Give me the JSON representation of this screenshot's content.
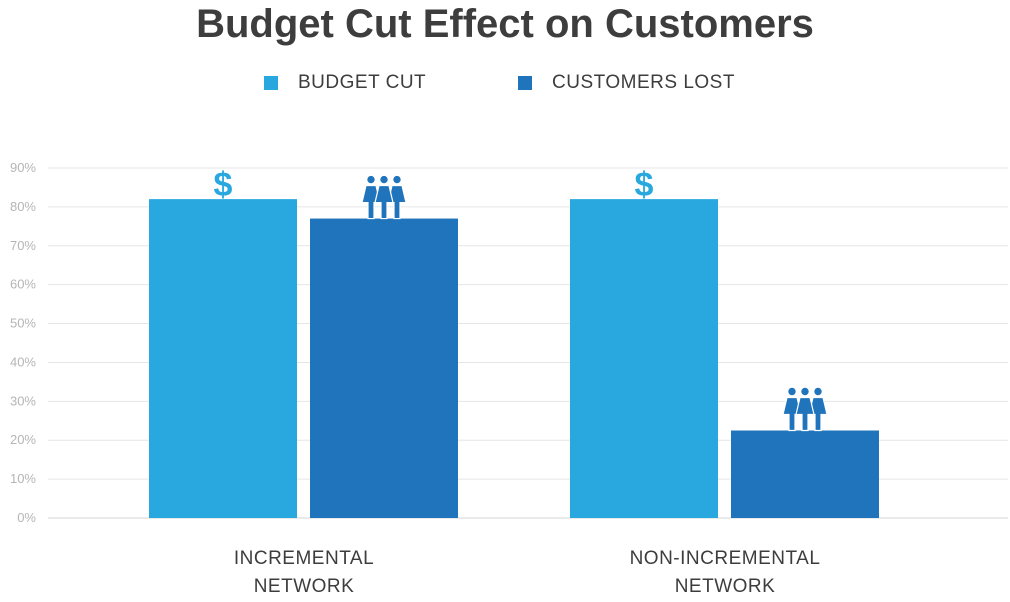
{
  "title": "Budget Cut Effect on Customers",
  "legend": [
    {
      "label": "BUDGET CUT",
      "color": "#29a8e0"
    },
    {
      "label": "CUSTOMERS LOST",
      "color": "#1f74bb"
    }
  ],
  "chart_data": {
    "type": "bar",
    "title": "Budget Cut Effect on Customers",
    "categories": [
      {
        "line1": "INCREMENTAL",
        "line2": "NETWORK"
      },
      {
        "line1": "NON-INCREMENTAL",
        "line2": "NETWORK"
      }
    ],
    "series": [
      {
        "name": "BUDGET CUT",
        "values": [
          82,
          82
        ],
        "color": "#29a8e0",
        "icon": "dollar-icon"
      },
      {
        "name": "CUSTOMERS LOST",
        "values": [
          77,
          22.5
        ],
        "color": "#1f74bb",
        "icon": "people-icon"
      }
    ],
    "ylim": [
      0,
      90
    ],
    "yticks": [
      0,
      10,
      20,
      30,
      40,
      50,
      60,
      70,
      80,
      90
    ],
    "ytick_suffix": "%",
    "xlabel": "",
    "ylabel": "",
    "grid": true,
    "legend_position": "top-center"
  }
}
